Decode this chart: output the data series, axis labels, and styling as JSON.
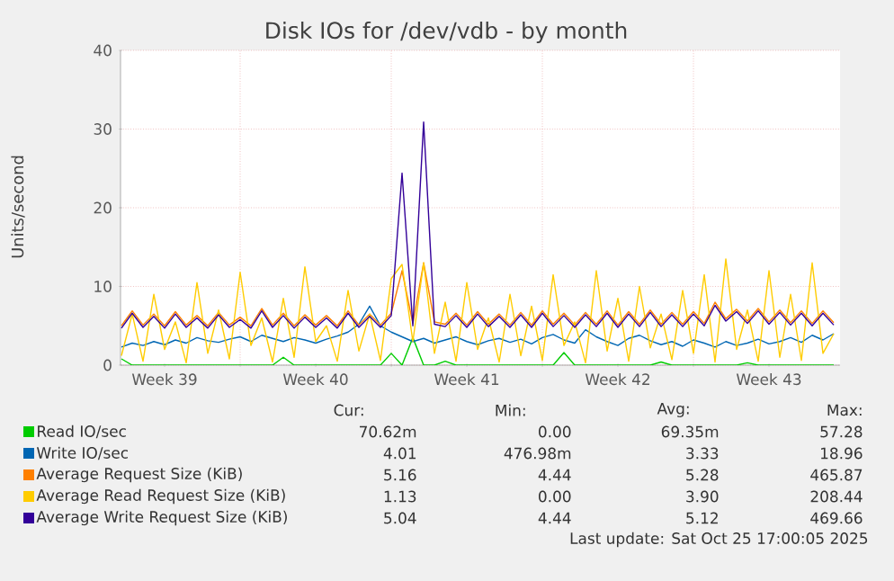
{
  "chart_data": {
    "type": "line",
    "title": "Disk IOs for /dev/vdb - by month",
    "ylabel": "Units/second",
    "x": [
      "2025-09-23T12:00",
      "2025-09-24T00:00",
      "2025-09-24T12:00",
      "2025-09-25T00:00",
      "2025-09-25T12:00",
      "2025-09-26T00:00",
      "2025-09-26T12:00",
      "2025-09-27T00:00",
      "2025-09-27T12:00",
      "2025-09-28T00:00",
      "2025-09-28T12:00",
      "2025-09-29T00:00",
      "2025-09-29T12:00",
      "2025-09-30T00:00",
      "2025-09-30T12:00",
      "2025-10-01T00:00",
      "2025-10-01T12:00",
      "2025-10-02T00:00",
      "2025-10-02T12:00",
      "2025-10-03T00:00",
      "2025-10-03T12:00",
      "2025-10-04T00:00",
      "2025-10-04T12:00",
      "2025-10-05T00:00",
      "2025-10-05T12:00",
      "2025-10-06T00:00",
      "2025-10-06T12:00",
      "2025-10-07T00:00",
      "2025-10-07T12:00",
      "2025-10-08T00:00",
      "2025-10-08T12:00",
      "2025-10-09T00:00",
      "2025-10-09T12:00",
      "2025-10-10T00:00",
      "2025-10-10T12:00",
      "2025-10-11T00:00",
      "2025-10-11T12:00",
      "2025-10-12T00:00",
      "2025-10-12T12:00",
      "2025-10-13T00:00",
      "2025-10-13T12:00",
      "2025-10-14T00:00",
      "2025-10-14T12:00",
      "2025-10-15T00:00",
      "2025-10-15T12:00",
      "2025-10-16T00:00",
      "2025-10-16T12:00",
      "2025-10-17T00:00",
      "2025-10-17T12:00",
      "2025-10-18T00:00",
      "2025-10-18T12:00",
      "2025-10-19T00:00",
      "2025-10-19T12:00",
      "2025-10-20T00:00",
      "2025-10-20T12:00",
      "2025-10-21T00:00",
      "2025-10-21T12:00",
      "2025-10-22T00:00",
      "2025-10-22T12:00",
      "2025-10-23T00:00",
      "2025-10-23T12:00",
      "2025-10-24T00:00",
      "2025-10-24T12:00",
      "2025-10-25T00:00",
      "2025-10-25T12:00",
      "2025-10-26T00:00",
      "2025-10-26T12:00"
    ],
    "series": [
      {
        "name": "Read IO/sec",
        "color": "#00cc00",
        "values": [
          0.8,
          0,
          0,
          0,
          0,
          0,
          0,
          0,
          0,
          0,
          0,
          0,
          0,
          0,
          0,
          1.0,
          0,
          0,
          0,
          0,
          0,
          0,
          0,
          0,
          0,
          1.5,
          0,
          3.5,
          0,
          0,
          0.5,
          0,
          0,
          0,
          0,
          0,
          0,
          0,
          0,
          0,
          0,
          1.6,
          0,
          0,
          0,
          0,
          0,
          0,
          0,
          0,
          0.4,
          0,
          0,
          0,
          0,
          0,
          0,
          0,
          0.3,
          0,
          0,
          0,
          0,
          0,
          0,
          0,
          0
        ]
      },
      {
        "name": "Write IO/sec",
        "color": "#0066b3",
        "values": [
          2.3,
          2.8,
          2.5,
          3.0,
          2.6,
          3.2,
          2.8,
          3.5,
          3.1,
          2.9,
          3.3,
          3.6,
          3.0,
          3.8,
          3.4,
          3.0,
          3.5,
          3.2,
          2.8,
          3.3,
          3.7,
          4.2,
          5.2,
          7.5,
          5.0,
          4.2,
          3.6,
          3.0,
          3.4,
          2.8,
          3.2,
          3.6,
          3.0,
          2.6,
          3.1,
          3.4,
          2.9,
          3.3,
          2.7,
          3.5,
          3.9,
          3.2,
          2.8,
          4.5,
          3.6,
          3.0,
          2.5,
          3.4,
          3.8,
          3.1,
          2.6,
          3.0,
          2.4,
          3.2,
          2.8,
          2.3,
          3.0,
          2.5,
          2.8,
          3.3,
          2.7,
          3.0,
          3.5,
          2.9,
          3.8,
          3.2,
          4.0
        ]
      },
      {
        "name": "Average Request Size (KiB)",
        "color": "#ff8000",
        "values": [
          5.0,
          6.9,
          5.1,
          6.5,
          5.0,
          6.8,
          5.1,
          6.3,
          5.0,
          6.7,
          5.1,
          6.1,
          5.0,
          7.2,
          5.1,
          6.6,
          5.0,
          6.4,
          5.1,
          6.3,
          5.0,
          6.9,
          5.1,
          6.5,
          5.1,
          6.6,
          12.0,
          5.3,
          13.0,
          5.5,
          5.2,
          6.6,
          5.1,
          6.8,
          5.2,
          6.5,
          5.1,
          6.7,
          5.1,
          6.9,
          5.2,
          6.6,
          5.1,
          6.7,
          5.2,
          6.9,
          5.1,
          6.8,
          5.2,
          7.0,
          5.2,
          6.7,
          5.2,
          6.8,
          5.3,
          8.0,
          5.9,
          7.1,
          5.6,
          7.2,
          5.5,
          7.0,
          5.4,
          6.9,
          5.3,
          6.9,
          5.4
        ]
      },
      {
        "name": "Average Read Request Size (KiB)",
        "color": "#ffcc00",
        "values": [
          1.2,
          6.5,
          0.5,
          9.0,
          2.0,
          5.5,
          0.3,
          10.5,
          1.5,
          7.0,
          0.8,
          11.8,
          2.5,
          6.0,
          0.4,
          8.5,
          1.0,
          12.5,
          3.0,
          5.0,
          0.5,
          9.5,
          1.8,
          6.5,
          0.6,
          11.0,
          12.8,
          3.0,
          13.0,
          1.5,
          8.0,
          0.5,
          10.5,
          2.0,
          6.0,
          0.4,
          9.0,
          1.2,
          7.5,
          0.6,
          11.5,
          2.5,
          5.5,
          0.3,
          12.0,
          1.8,
          8.5,
          0.5,
          10.0,
          2.2,
          6.5,
          0.7,
          9.5,
          1.5,
          11.5,
          0.4,
          13.5,
          2.0,
          7.0,
          0.5,
          12.0,
          1.0,
          9.0,
          0.6,
          13.0,
          1.5,
          4.0
        ]
      },
      {
        "name": "Average Write Request Size (KiB)",
        "color": "#330099",
        "values": [
          4.7,
          6.6,
          4.8,
          6.2,
          4.7,
          6.5,
          4.8,
          6.0,
          4.7,
          6.4,
          4.8,
          5.8,
          4.7,
          6.9,
          4.8,
          6.3,
          4.7,
          6.1,
          4.8,
          6.0,
          4.7,
          6.6,
          4.8,
          6.2,
          4.8,
          6.3,
          24.4,
          5.0,
          30.9,
          5.2,
          4.9,
          6.3,
          4.8,
          6.5,
          4.9,
          6.2,
          4.8,
          6.4,
          4.8,
          6.6,
          4.9,
          6.3,
          4.8,
          6.4,
          4.9,
          6.6,
          4.8,
          6.5,
          4.9,
          6.7,
          4.9,
          6.4,
          4.9,
          6.5,
          5.0,
          7.6,
          5.6,
          6.8,
          5.3,
          6.9,
          5.2,
          6.7,
          5.1,
          6.6,
          5.0,
          6.6,
          5.1
        ]
      }
    ],
    "xlim": [
      "2025-09-23T11:00",
      "2025-10-26T19:00"
    ],
    "xticks": [
      {
        "value": "2025-09-25T12:00",
        "label": "Week 39"
      },
      {
        "value": "2025-10-02T12:00",
        "label": "Week 40"
      },
      {
        "value": "2025-10-09T12:00",
        "label": "Week 41"
      },
      {
        "value": "2025-10-16T12:00",
        "label": "Week 42"
      },
      {
        "value": "2025-10-23T12:00",
        "label": "Week 43"
      },
      {
        "value": "2025-09-29",
        "label": null
      },
      {
        "value": "2025-10-06",
        "label": null
      },
      {
        "value": "2025-10-13",
        "label": null
      },
      {
        "value": "2025-10-20",
        "label": null
      }
    ],
    "ylim": [
      0,
      40
    ],
    "yticks": [
      0,
      10,
      20,
      30,
      40
    ],
    "grid": true,
    "legend": "bottom",
    "annotations": [
      "Cur:",
      "Min:",
      "Avg:",
      "Max:",
      "70.62m",
      "0.00",
      "69.35m",
      "57.28",
      "4.01",
      "476.98m",
      "3.33",
      "18.96",
      "5.16",
      "4.44",
      "5.28",
      "465.87",
      "1.13",
      "0.00",
      "3.90",
      "208.44",
      "5.04",
      "4.44",
      "5.12",
      "469.66",
      "Last update: Sat Oct 25 17:00:05 2025"
    ]
  }
}
